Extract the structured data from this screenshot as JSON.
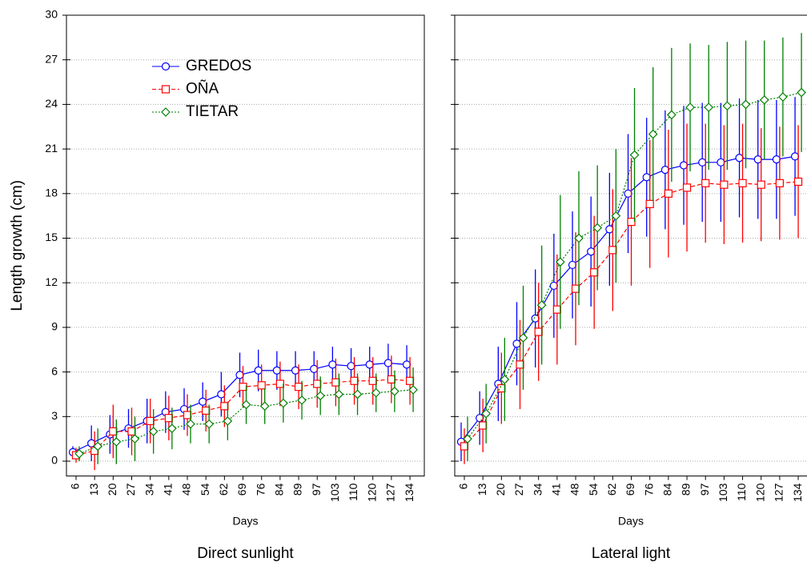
{
  "chart_data": [
    {
      "type": "line",
      "title": "Direct sunlight",
      "xlabel": "Days",
      "ylabel": "Length growth (cm)",
      "categories": [
        "6",
        "13",
        "20",
        "27",
        "34",
        "41",
        "48",
        "54",
        "62",
        "69",
        "76",
        "84",
        "89",
        "97",
        "103",
        "110",
        "120",
        "127",
        "134"
      ],
      "ylim": [
        -1,
        30
      ],
      "yticks": [
        0,
        3,
        6,
        9,
        12,
        15,
        18,
        21,
        24,
        27,
        30
      ],
      "grid": true,
      "legend": "upper left",
      "series": [
        {
          "name": "GREDOS",
          "color": "#0000ff",
          "line_style": "solid",
          "marker": "circle",
          "values": [
            0.6,
            1.2,
            1.8,
            2.2,
            2.7,
            3.3,
            3.5,
            4.0,
            4.5,
            5.8,
            6.1,
            6.1,
            6.1,
            6.2,
            6.5,
            6.4,
            6.5,
            6.6,
            6.5
          ],
          "errors": [
            0.4,
            1.2,
            1.3,
            1.3,
            1.5,
            1.4,
            1.4,
            1.3,
            1.5,
            1.5,
            1.4,
            1.3,
            1.3,
            1.2,
            1.2,
            1.2,
            1.2,
            1.3,
            1.3
          ]
        },
        {
          "name": "OÑA",
          "color": "#ff0000",
          "line_style": "dashed",
          "marker": "square",
          "values": [
            0.4,
            0.7,
            2.0,
            2.0,
            2.7,
            2.9,
            3.1,
            3.4,
            3.7,
            5.0,
            5.1,
            5.2,
            5.0,
            5.2,
            5.3,
            5.4,
            5.4,
            5.5,
            5.4
          ],
          "errors": [
            0.5,
            1.3,
            1.8,
            1.6,
            1.5,
            1.5,
            1.4,
            1.4,
            1.4,
            1.4,
            1.4,
            1.5,
            1.5,
            1.6,
            1.6,
            1.6,
            1.6,
            1.6,
            1.6
          ]
        },
        {
          "name": "TIETAR",
          "color": "#008000",
          "line_style": "dotted",
          "marker": "diamond",
          "values": [
            0.5,
            1.0,
            1.3,
            1.5,
            2.0,
            2.2,
            2.5,
            2.5,
            2.7,
            3.8,
            3.7,
            3.9,
            4.1,
            4.4,
            4.5,
            4.5,
            4.6,
            4.7,
            4.8
          ],
          "errors": [
            0.5,
            1.2,
            1.5,
            1.5,
            1.5,
            1.4,
            1.3,
            1.3,
            1.3,
            1.3,
            1.2,
            1.3,
            1.3,
            1.3,
            1.4,
            1.4,
            1.3,
            1.4,
            1.5
          ]
        }
      ]
    },
    {
      "type": "line",
      "title": "Lateral light",
      "xlabel": "Days",
      "categories": [
        "6",
        "13",
        "20",
        "27",
        "34",
        "41",
        "48",
        "54",
        "62",
        "69",
        "76",
        "84",
        "89",
        "97",
        "103",
        "110",
        "120",
        "127",
        "134"
      ],
      "ylim": [
        -1,
        30
      ],
      "yticks": [
        0,
        3,
        6,
        9,
        12,
        15,
        18,
        21,
        24,
        27,
        30
      ],
      "grid": true,
      "series": [
        {
          "name": "GREDOS",
          "color": "#0000ff",
          "line_style": "solid",
          "marker": "circle",
          "values": [
            1.3,
            2.9,
            5.2,
            7.9,
            9.6,
            11.8,
            13.2,
            14.1,
            15.6,
            18.0,
            19.1,
            19.6,
            19.9,
            20.1,
            20.1,
            20.4,
            20.3,
            20.3,
            20.5
          ],
          "errors": [
            1.3,
            1.8,
            2.5,
            2.8,
            3.3,
            3.5,
            3.6,
            3.7,
            3.8,
            4.0,
            4.0,
            4.0,
            4.0,
            4.0,
            4.0,
            4.0,
            4.0,
            4.0,
            4.0
          ]
        },
        {
          "name": "OÑA",
          "color": "#ff0000",
          "line_style": "dashed",
          "marker": "square",
          "values": [
            1.0,
            2.4,
            4.9,
            6.5,
            8.7,
            10.2,
            11.6,
            12.7,
            14.2,
            16.1,
            17.3,
            18.0,
            18.4,
            18.7,
            18.6,
            18.7,
            18.6,
            18.7,
            18.8
          ],
          "errors": [
            1.2,
            1.8,
            2.4,
            3.0,
            3.3,
            3.7,
            3.8,
            3.8,
            4.1,
            4.3,
            4.3,
            4.3,
            4.3,
            4.0,
            4.0,
            4.0,
            3.8,
            3.8,
            3.8
          ]
        },
        {
          "name": "TIETAR",
          "color": "#008000",
          "line_style": "dotted",
          "marker": "diamond",
          "values": [
            1.5,
            3.2,
            5.5,
            8.3,
            10.5,
            13.4,
            15.0,
            15.7,
            16.5,
            20.6,
            22.0,
            23.3,
            23.8,
            23.8,
            23.9,
            24.0,
            24.3,
            24.5,
            24.8
          ],
          "errors": [
            1.5,
            2.0,
            2.8,
            3.5,
            4.0,
            4.5,
            4.5,
            4.2,
            4.5,
            4.5,
            4.5,
            4.5,
            4.3,
            4.2,
            4.3,
            4.3,
            4.0,
            4.0,
            4.0
          ]
        }
      ]
    }
  ]
}
